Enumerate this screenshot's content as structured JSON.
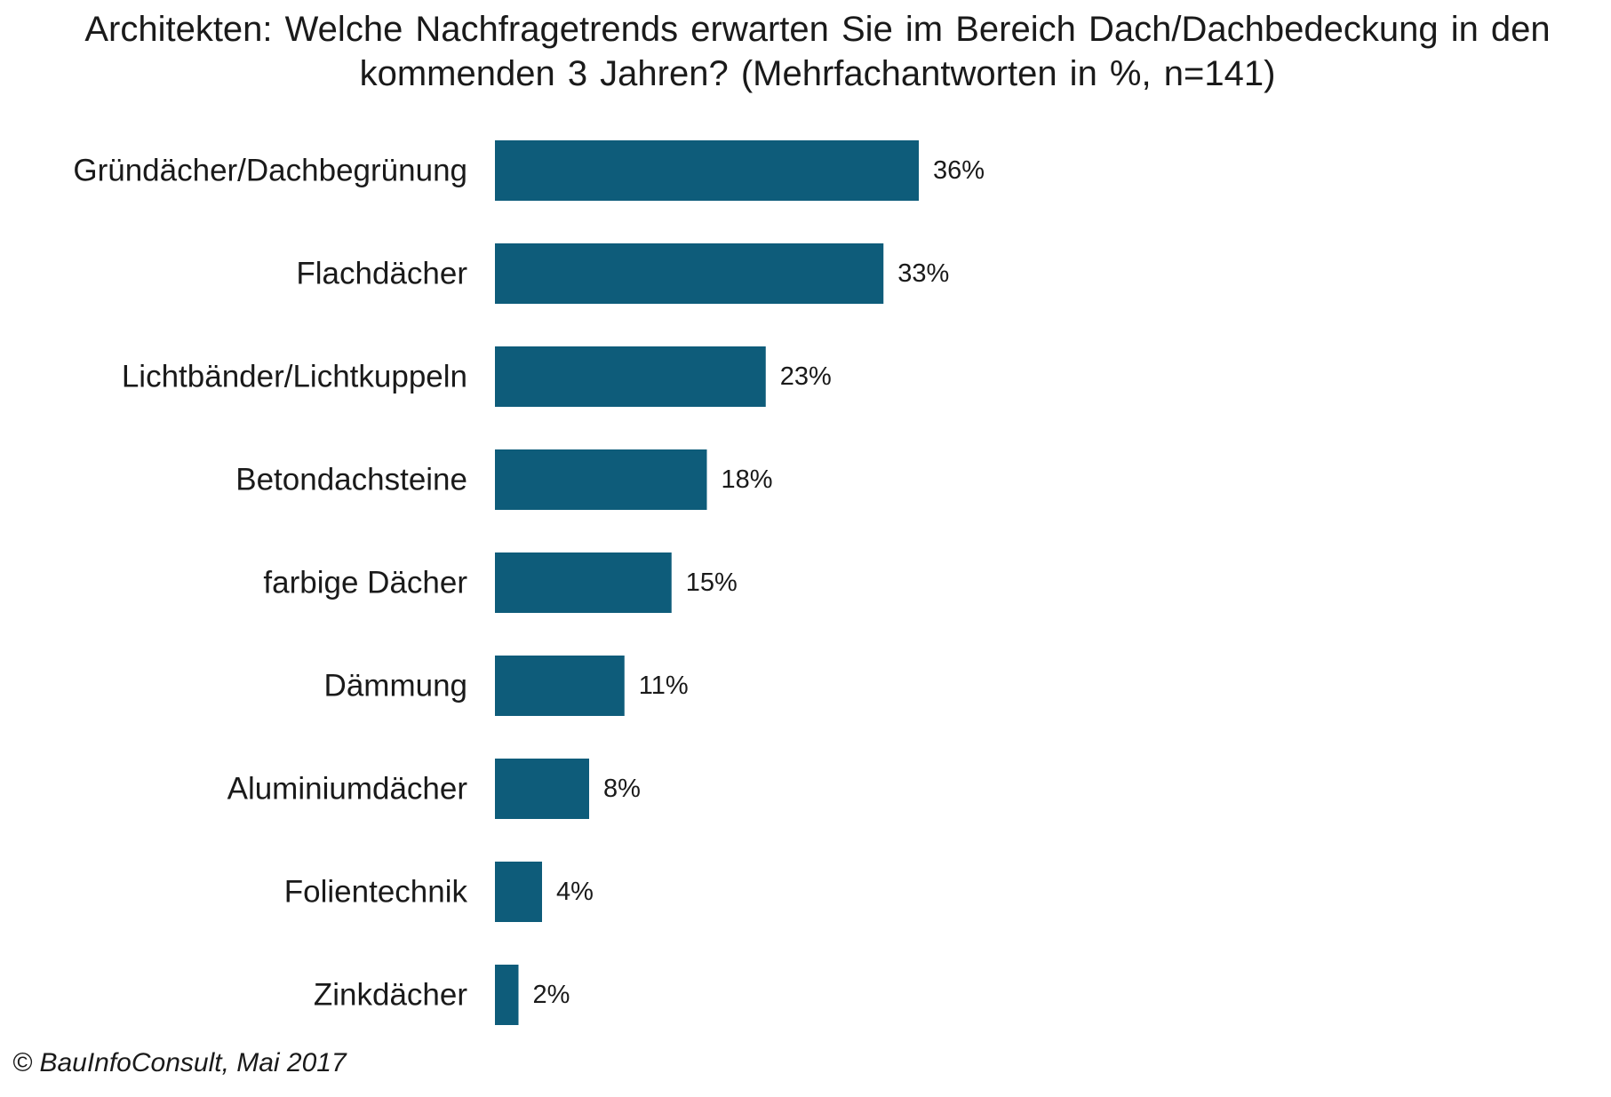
{
  "chart_data": {
    "type": "bar",
    "orientation": "horizontal",
    "title": "Architekten: Welche Nachfragetrends erwarten Sie im Bereich Dach/Dachbedeckung in den kommenden 3 Jahren? (Mehrfachantworten in %, n=141)",
    "categories": [
      "Gründächer/Dachbegrünung",
      "Flachdächer",
      "Lichtbänder/Lichtkuppeln",
      "Betondachsteine",
      "farbige Dächer",
      "Dämmung",
      "Aluminiumdächer",
      "Folientechnik",
      "Zinkdächer"
    ],
    "values": [
      36,
      33,
      23,
      18,
      15,
      11,
      8,
      4,
      2
    ],
    "value_labels": [
      "36%",
      "33%",
      "23%",
      "18%",
      "15%",
      "11%",
      "8%",
      "4%",
      "2%"
    ],
    "unit": "%",
    "bar_color": "#0e5c7a",
    "grid": false,
    "legend": "none"
  },
  "footer": {
    "source": "© BauInfoConsult, Mai 2017"
  }
}
